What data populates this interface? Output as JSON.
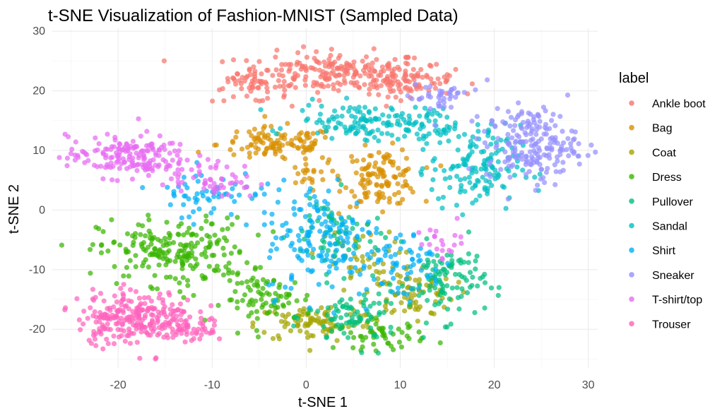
{
  "chart_data": {
    "type": "scatter",
    "title": "t-SNE Visualization of Fashion-MNIST (Sampled Data)",
    "xlabel": "t-SNE 1",
    "ylabel": "t-SNE 2",
    "xlim": [
      -27,
      31
    ],
    "ylim": [
      -26.5,
      30.5
    ],
    "x_ticks": [
      -20,
      -10,
      0,
      10,
      20,
      30
    ],
    "y_ticks": [
      -20,
      -10,
      0,
      10,
      20,
      30
    ],
    "x_tick_labels": [
      "-20",
      "-10",
      "0",
      "10",
      "20",
      "30"
    ],
    "y_tick_labels": [
      "-20",
      "-10",
      "0",
      "10",
      "20",
      "30"
    ],
    "grid": true,
    "legend_title": "label",
    "legend_position": "right",
    "series": [
      {
        "name": "Ankle boot",
        "color": "#F8766D",
        "clusters": [
          {
            "cx": 3,
            "cy": 23,
            "sx": 6.5,
            "sy": 2.2,
            "n": 220
          },
          {
            "cx": 11,
            "cy": 21.5,
            "sx": 3,
            "sy": 1.5,
            "n": 70
          },
          {
            "cx": -6,
            "cy": 20.5,
            "sx": 2.5,
            "sy": 1.5,
            "n": 40
          }
        ]
      },
      {
        "name": "Bag",
        "color": "#D89000",
        "clusters": [
          {
            "cx": -3,
            "cy": 11,
            "sx": 4,
            "sy": 1.8,
            "n": 110
          },
          {
            "cx": 8,
            "cy": 5.5,
            "sx": 2.5,
            "sy": 3,
            "n": 120
          },
          {
            "cx": 0,
            "cy": 6,
            "sx": 1.5,
            "sy": 1.5,
            "n": 20
          }
        ]
      },
      {
        "name": "Coat",
        "color": "#A3A500",
        "clusters": [
          {
            "cx": 1,
            "cy": -19,
            "sx": 4,
            "sy": 2,
            "n": 90
          },
          {
            "cx": 11,
            "cy": -14,
            "sx": 3,
            "sy": 3,
            "n": 80
          },
          {
            "cx": 5,
            "cy": -8,
            "sx": 3,
            "sy": 3,
            "n": 40
          }
        ]
      },
      {
        "name": "Dress",
        "color": "#39B600",
        "clusters": [
          {
            "cx": -14,
            "cy": -7,
            "sx": 5,
            "sy": 3.5,
            "n": 210
          },
          {
            "cx": -4,
            "cy": -15,
            "sx": 3,
            "sy": 2.5,
            "n": 80
          },
          {
            "cx": 8,
            "cy": -21,
            "sx": 3,
            "sy": 1.5,
            "n": 50
          }
        ]
      },
      {
        "name": "Pullover",
        "color": "#00BF7D",
        "clusters": [
          {
            "cx": 15,
            "cy": -12,
            "sx": 2.5,
            "sy": 4,
            "n": 100
          },
          {
            "cx": 5,
            "cy": -18,
            "sx": 3,
            "sy": 3,
            "n": 80
          },
          {
            "cx": 3,
            "cy": -4,
            "sx": 3,
            "sy": 4,
            "n": 60
          }
        ]
      },
      {
        "name": "Sandal",
        "color": "#00BFC4",
        "clusters": [
          {
            "cx": 6,
            "cy": 15,
            "sx": 4.5,
            "sy": 1.8,
            "n": 120
          },
          {
            "cx": 18,
            "cy": 7,
            "sx": 3,
            "sy": 4.5,
            "n": 140
          },
          {
            "cx": 13,
            "cy": 14,
            "sx": 2,
            "sy": 2,
            "n": 40
          }
        ]
      },
      {
        "name": "Shirt",
        "color": "#00B0F6",
        "clusters": [
          {
            "cx": 2,
            "cy": -5,
            "sx": 4,
            "sy": 6,
            "n": 160
          },
          {
            "cx": -10,
            "cy": 3,
            "sx": 4,
            "sy": 2.5,
            "n": 60
          },
          {
            "cx": 10,
            "cy": -9,
            "sx": 3,
            "sy": 4,
            "n": 60
          }
        ]
      },
      {
        "name": "Sneaker",
        "color": "#9590FF",
        "clusters": [
          {
            "cx": 24,
            "cy": 11,
            "sx": 3,
            "sy": 3.8,
            "n": 200
          },
          {
            "cx": 14,
            "cy": 19,
            "sx": 2,
            "sy": 2,
            "n": 40
          }
        ]
      },
      {
        "name": "T-shirt/top",
        "color": "#E76BF3",
        "clusters": [
          {
            "cx": -19,
            "cy": 9,
            "sx": 4,
            "sy": 2.2,
            "n": 170
          },
          {
            "cx": -10,
            "cy": 5,
            "sx": 3,
            "sy": 2,
            "n": 50
          },
          {
            "cx": 15,
            "cy": -5,
            "sx": 2,
            "sy": 2,
            "n": 20
          }
        ]
      },
      {
        "name": "Trouser",
        "color": "#FF62BC",
        "clusters": [
          {
            "cx": -18,
            "cy": -18,
            "sx": 4,
            "sy": 2.8,
            "n": 260
          },
          {
            "cx": -12,
            "cy": -20.5,
            "sx": 1.5,
            "sy": 1,
            "n": 30
          }
        ]
      }
    ]
  }
}
